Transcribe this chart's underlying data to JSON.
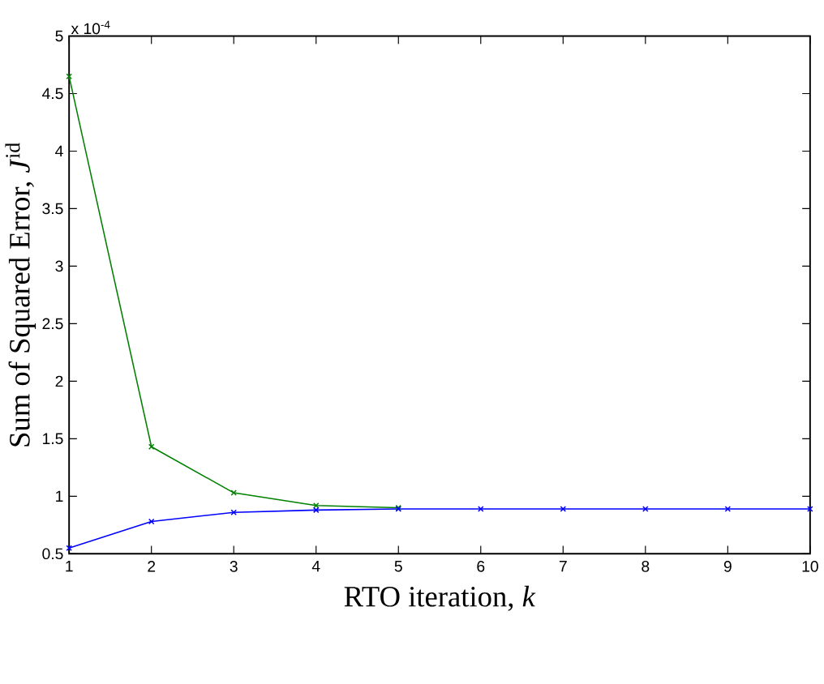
{
  "chart_data": {
    "type": "line",
    "xlabel": "RTO iteration, *k*",
    "ylabel": "Sum of Squared Error, *J*$^{id}$",
    "annotations": [
      "x 10$^{-4}$"
    ],
    "x": [
      1,
      2,
      3,
      4,
      5,
      6,
      7,
      8,
      9,
      10
    ],
    "series": [
      {
        "color": "#008000",
        "values": [
          4.65,
          1.43,
          1.03,
          0.92,
          0.9,
          null,
          null,
          null,
          null,
          null
        ]
      },
      {
        "color": "#0000ff",
        "values": [
          0.55,
          0.78,
          0.86,
          0.88,
          0.89,
          0.89,
          0.89,
          0.89,
          0.89,
          0.89
        ]
      }
    ],
    "xlim": [
      1,
      10
    ],
    "ylim": [
      0.5,
      5
    ],
    "xticks": [
      1,
      2,
      3,
      4,
      5,
      6,
      7,
      8,
      9,
      10
    ],
    "yticks": [
      0.5,
      1,
      1.5,
      2,
      2.5,
      3,
      3.5,
      4,
      4.5,
      5
    ],
    "marker": "cross",
    "line_style": "solid",
    "grid": false
  }
}
